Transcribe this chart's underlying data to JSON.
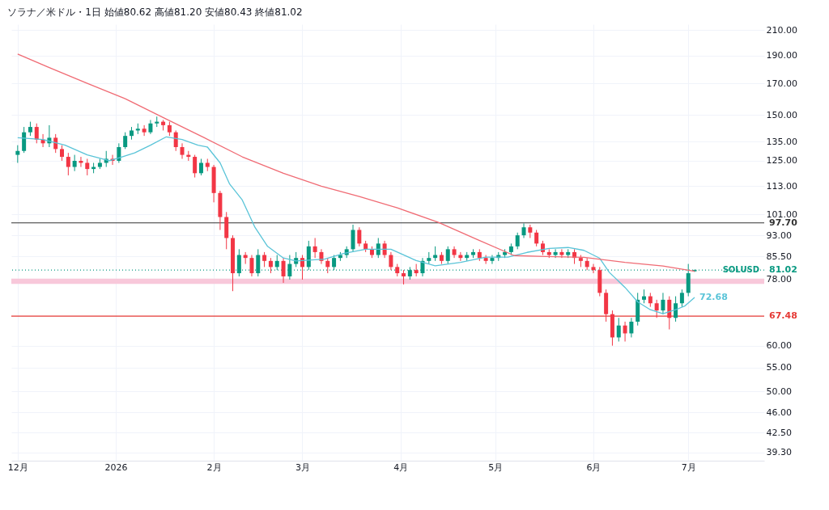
{
  "chart_data": {
    "type": "candlestick",
    "title": "ソラナ／米ドル・1日 始値80.62 高値81.20 安値80.43 終値81.02",
    "x": [
      "2025-12-01",
      "2025-12-03",
      "2025-12-05",
      "2025-12-07",
      "2025-12-09",
      "2025-12-11",
      "2025-12-13",
      "2025-12-15",
      "2025-12-17",
      "2025-12-19",
      "2025-12-21",
      "2025-12-23",
      "2025-12-25",
      "2025-12-27",
      "2025-12-29",
      "2025-12-31",
      "2026-01-02",
      "2026-01-04",
      "2026-01-06",
      "2026-01-08",
      "2026-01-10",
      "2026-01-12",
      "2026-01-14",
      "2026-01-16",
      "2026-01-18",
      "2026-01-20",
      "2026-01-22",
      "2026-01-24",
      "2026-01-26",
      "2026-01-28",
      "2026-01-30",
      "2026-02-01",
      "2026-02-03",
      "2026-02-05",
      "2026-02-07",
      "2026-02-09",
      "2026-02-11",
      "2026-02-13",
      "2026-02-15",
      "2026-02-17",
      "2026-02-19",
      "2026-02-21",
      "2026-02-23",
      "2026-02-25",
      "2026-02-27",
      "2026-03-01",
      "2026-03-03",
      "2026-03-05",
      "2026-03-07",
      "2026-03-09",
      "2026-03-11",
      "2026-03-13",
      "2026-03-15",
      "2026-03-17",
      "2026-03-19",
      "2026-03-21",
      "2026-03-23",
      "2026-03-25",
      "2026-03-27",
      "2026-03-29",
      "2026-03-31",
      "2026-04-02",
      "2026-04-04",
      "2026-04-06",
      "2026-04-08",
      "2026-04-10",
      "2026-04-12",
      "2026-04-14",
      "2026-04-16",
      "2026-04-18",
      "2026-04-20",
      "2026-04-22",
      "2026-04-24",
      "2026-04-26",
      "2026-04-28",
      "2026-04-30",
      "2026-05-02",
      "2026-05-04",
      "2026-05-06",
      "2026-05-08",
      "2026-05-10",
      "2026-05-12",
      "2026-05-14",
      "2026-05-16",
      "2026-05-18",
      "2026-05-20",
      "2026-05-22",
      "2026-05-24",
      "2026-05-26",
      "2026-05-28",
      "2026-05-30",
      "2026-06-01",
      "2026-06-03",
      "2026-06-05",
      "2026-06-07",
      "2026-06-09",
      "2026-06-11",
      "2026-06-13",
      "2026-06-15",
      "2026-06-17",
      "2026-06-19",
      "2026-06-21",
      "2026-06-23",
      "2026-06-25",
      "2026-06-27",
      "2026-06-29",
      "2026-07-01",
      "2026-07-03"
    ],
    "ohlc": [
      [
        128,
        133,
        124,
        130
      ],
      [
        130,
        143,
        129,
        140
      ],
      [
        140,
        146,
        138,
        143
      ],
      [
        143,
        145,
        134,
        136
      ],
      [
        136,
        139,
        132,
        134
      ],
      [
        134,
        144,
        132,
        137
      ],
      [
        137,
        139,
        129,
        131
      ],
      [
        131,
        133,
        125,
        127
      ],
      [
        127,
        129,
        118,
        122
      ],
      [
        122,
        128,
        120,
        125
      ],
      [
        125,
        127,
        122,
        124
      ],
      [
        124,
        126,
        118,
        121
      ],
      [
        121,
        124,
        119,
        122
      ],
      [
        122,
        126,
        121,
        124
      ],
      [
        124,
        130,
        122,
        126
      ],
      [
        126,
        128,
        123,
        125
      ],
      [
        125,
        134,
        124,
        132
      ],
      [
        132,
        140,
        131,
        138
      ],
      [
        138,
        143,
        136,
        141
      ],
      [
        141,
        145,
        139,
        142
      ],
      [
        142,
        144,
        138,
        140
      ],
      [
        140,
        147,
        139,
        145
      ],
      [
        145,
        149,
        143,
        146
      ],
      [
        146,
        147,
        141,
        144
      ],
      [
        144,
        146,
        138,
        140
      ],
      [
        140,
        141,
        130,
        132
      ],
      [
        132,
        134,
        126,
        128
      ],
      [
        128,
        130,
        125,
        127
      ],
      [
        127,
        128,
        117,
        119
      ],
      [
        119,
        126,
        118,
        124
      ],
      [
        124,
        126,
        120,
        122
      ],
      [
        122,
        123,
        106,
        110
      ],
      [
        110,
        111,
        95,
        100
      ],
      [
        100,
        102,
        88,
        92
      ],
      [
        92,
        93,
        74.5,
        80
      ],
      [
        80,
        88,
        79,
        86
      ],
      [
        86,
        87,
        83,
        85
      ],
      [
        85,
        86,
        79,
        80
      ],
      [
        80,
        88,
        79,
        86
      ],
      [
        86,
        87,
        82,
        84
      ],
      [
        84,
        85,
        80,
        82
      ],
      [
        82,
        86,
        81,
        84
      ],
      [
        84,
        85,
        77,
        79
      ],
      [
        79,
        86,
        78,
        83
      ],
      [
        83,
        87,
        82,
        85
      ],
      [
        85,
        86,
        78,
        82
      ],
      [
        82,
        91,
        81,
        89
      ],
      [
        89,
        92,
        85,
        87
      ],
      [
        87,
        88,
        83,
        84
      ],
      [
        84,
        85,
        80,
        82
      ],
      [
        82,
        86,
        81,
        85
      ],
      [
        85,
        87,
        84,
        86
      ],
      [
        86,
        89,
        85,
        88
      ],
      [
        88,
        97,
        87,
        95
      ],
      [
        95,
        96,
        89,
        90
      ],
      [
        90,
        91,
        87,
        88
      ],
      [
        88,
        89,
        85,
        86
      ],
      [
        86,
        92,
        85,
        90
      ],
      [
        90,
        91,
        85,
        86
      ],
      [
        86,
        87,
        81,
        82
      ],
      [
        82,
        83,
        79,
        80
      ],
      [
        80,
        81,
        76.5,
        79
      ],
      [
        79,
        82,
        78,
        81
      ],
      [
        81,
        83,
        79,
        80
      ],
      [
        80,
        85,
        79,
        84
      ],
      [
        84,
        87,
        83,
        85
      ],
      [
        85,
        89,
        84,
        86
      ],
      [
        86,
        87,
        83,
        84
      ],
      [
        84,
        89,
        83,
        88
      ],
      [
        88,
        89,
        85,
        86
      ],
      [
        86,
        87,
        84,
        85
      ],
      [
        85,
        87,
        84,
        86
      ],
      [
        86,
        88,
        85,
        87
      ],
      [
        87,
        88,
        84,
        85
      ],
      [
        85,
        86,
        83,
        84
      ],
      [
        84,
        86,
        83,
        85
      ],
      [
        85,
        87,
        84,
        86
      ],
      [
        86,
        88,
        85,
        87
      ],
      [
        87,
        90,
        86,
        89
      ],
      [
        89,
        94,
        88,
        93
      ],
      [
        93,
        97.5,
        92,
        96
      ],
      [
        96,
        97,
        92,
        94
      ],
      [
        94,
        95,
        89,
        90
      ],
      [
        90,
        91,
        86,
        87
      ],
      [
        87,
        88,
        85,
        86
      ],
      [
        86,
        88,
        85,
        87
      ],
      [
        87,
        88,
        85,
        86
      ],
      [
        86,
        88,
        85,
        87
      ],
      [
        87,
        88,
        83,
        85
      ],
      [
        85,
        86,
        82,
        84
      ],
      [
        84,
        85,
        81,
        82
      ],
      [
        82,
        83,
        80,
        81
      ],
      [
        81,
        82,
        73,
        74
      ],
      [
        74,
        75,
        66,
        68
      ],
      [
        68,
        69,
        60,
        62
      ],
      [
        62,
        67,
        61,
        65
      ],
      [
        65,
        66,
        61,
        63
      ],
      [
        63,
        67,
        62,
        66
      ],
      [
        66,
        74,
        65,
        72
      ],
      [
        72,
        75,
        71,
        73
      ],
      [
        73,
        74,
        70,
        71
      ],
      [
        71,
        72,
        67,
        69
      ],
      [
        69,
        74,
        68,
        72
      ],
      [
        72,
        73,
        64,
        67
      ],
      [
        67,
        73,
        66,
        71
      ],
      [
        71,
        75,
        70,
        74
      ],
      [
        74,
        83,
        73,
        80
      ],
      [
        80.62,
        81.2,
        80.43,
        81.02
      ]
    ],
    "colors": [
      "#089981",
      "#089981",
      "#089981",
      "#f23645",
      "#f23645",
      "#089981",
      "#f23645",
      "#f23645",
      "#f23645",
      "#089981",
      "#f23645",
      "#f23645",
      "#089981",
      "#089981",
      "#089981",
      "#f23645",
      "#089981",
      "#089981",
      "#089981",
      "#089981",
      "#f23645",
      "#089981",
      "#089981",
      "#f23645",
      "#f23645",
      "#f23645",
      "#f23645",
      "#f23645",
      "#f23645",
      "#089981",
      "#f23645",
      "#f23645",
      "#f23645",
      "#f23645",
      "#f23645",
      "#089981",
      "#f23645",
      "#f23645",
      "#089981",
      "#f23645",
      "#f23645",
      "#089981",
      "#f23645",
      "#089981",
      "#089981",
      "#f23645",
      "#089981",
      "#f23645",
      "#f23645",
      "#f23645",
      "#089981",
      "#089981",
      "#089981",
      "#089981",
      "#f23645",
      "#f23645",
      "#f23645",
      "#089981",
      "#f23645",
      "#f23645",
      "#f23645",
      "#f23645",
      "#089981",
      "#f23645",
      "#089981",
      "#089981",
      "#089981",
      "#f23645",
      "#089981",
      "#f23645",
      "#f23645",
      "#089981",
      "#089981",
      "#f23645",
      "#f23645",
      "#089981",
      "#089981",
      "#089981",
      "#089981",
      "#089981",
      "#089981",
      "#f23645",
      "#f23645",
      "#f23645",
      "#f23645",
      "#089981",
      "#f23645",
      "#089981",
      "#f23645",
      "#f23645",
      "#f23645",
      "#f23645",
      "#f23645",
      "#f23645",
      "#f23645",
      "#089981",
      "#f23645",
      "#089981",
      "#089981",
      "#089981",
      "#f23645",
      "#f23645",
      "#089981",
      "#f23645",
      "#089981",
      "#089981",
      "#089981",
      "#089981"
    ],
    "series": [
      {
        "type": "line",
        "color": "#5ac4d8",
        "x": [
          "2025-12-01",
          "2025-12-09",
          "2025-12-16",
          "2025-12-23",
          "2025-12-30",
          "2026-01-03",
          "2026-01-07",
          "2026-01-12",
          "2026-01-17",
          "2026-01-22",
          "2026-01-27",
          "2026-01-30",
          "2026-02-03",
          "2026-02-06",
          "2026-02-10",
          "2026-02-14",
          "2026-02-18",
          "2026-02-23",
          "2026-02-27",
          "2026-03-08",
          "2026-03-14",
          "2026-03-21",
          "2026-03-29",
          "2026-04-06",
          "2026-04-12",
          "2026-04-20",
          "2026-04-28",
          "2026-05-05",
          "2026-05-11",
          "2026-05-18",
          "2026-05-24",
          "2026-05-29",
          "2026-06-03",
          "2026-06-06",
          "2026-06-11",
          "2026-06-15",
          "2026-06-19",
          "2026-06-23",
          "2026-06-27",
          "2026-06-30",
          "2026-07-03"
        ],
        "values": [
          137,
          136,
          133,
          128,
          125,
          127,
          129,
          133,
          137.5,
          136,
          133,
          132,
          124,
          114,
          107,
          96,
          89,
          85,
          84,
          84.6,
          86.5,
          88,
          88,
          84.1,
          82.4,
          83.5,
          85.3,
          85.3,
          86.9,
          88.3,
          88.6,
          87.6,
          84.9,
          80.3,
          75.6,
          71.4,
          69.2,
          68.1,
          69.2,
          70.3,
          72.68
        ],
        "value_labels": [
          null,
          null,
          null,
          null,
          null,
          null,
          null,
          null,
          null,
          null,
          null,
          null,
          null,
          null,
          null,
          null,
          null,
          null,
          null,
          null,
          null,
          null,
          null,
          null,
          null,
          null,
          null,
          null,
          null,
          null,
          null,
          null,
          null,
          null,
          null,
          null,
          null,
          null,
          null,
          null,
          "72.68"
        ]
      },
      {
        "type": "line",
        "color": "#f06b74",
        "x": [
          "2025-12-01",
          "2025-12-11",
          "2025-12-23",
          "2026-01-04",
          "2026-01-17",
          "2026-01-29",
          "2026-02-10",
          "2026-02-23",
          "2026-03-07",
          "2026-03-19",
          "2026-03-31",
          "2026-04-13",
          "2026-04-25",
          "2026-05-07",
          "2026-05-17",
          "2026-05-29",
          "2026-06-11",
          "2026-06-23",
          "2026-07-03"
        ],
        "values": [
          191,
          181,
          170,
          160,
          147.5,
          137,
          127,
          119,
          113,
          108.5,
          103.7,
          97.9,
          91.6,
          85.8,
          85.5,
          85.2,
          83.5,
          82.3,
          80.6
        ]
      }
    ],
    "ref_lines": [
      {
        "axis": "y",
        "value": 97.7,
        "label": "97.70",
        "color": "#333333",
        "line_style": "solid"
      },
      {
        "axis": "y",
        "value": 81.02,
        "label": "81.02",
        "color": "#089981",
        "line_style": "dotted"
      },
      {
        "axis": "y",
        "value": 67.48,
        "label": "67.48",
        "color": "#e53935",
        "line_style": "solid"
      }
    ],
    "bands": [
      {
        "axis": "y",
        "from": 76.7,
        "to": 78.3,
        "color": "#f8c8da"
      }
    ],
    "annotations": [
      {
        "text": "SOLUSD",
        "y": 81.02
      }
    ],
    "log": true,
    "grid": true,
    "ylim": [
      38,
      215
    ],
    "yticks": [
      {
        "value": 210,
        "label": "210.00"
      },
      {
        "value": 190,
        "label": "190.00"
      },
      {
        "value": 170,
        "label": "170.00"
      },
      {
        "value": 150,
        "label": "150.00"
      },
      {
        "value": 135,
        "label": "135.00"
      },
      {
        "value": 125,
        "label": "125.00"
      },
      {
        "value": 113,
        "label": "113.00"
      },
      {
        "value": 101,
        "label": "101.00"
      },
      {
        "value": 93,
        "label": "93.00"
      },
      {
        "value": 85.5,
        "label": "85.50"
      },
      {
        "value": 78,
        "label": "78.00"
      },
      {
        "value": 60,
        "label": "60.00"
      },
      {
        "value": 55,
        "label": "55.00"
      },
      {
        "value": 50,
        "label": "50.00"
      },
      {
        "value": 46,
        "label": "46.00"
      },
      {
        "value": 42.5,
        "label": "42.50"
      },
      {
        "value": 39.3,
        "label": "39.30"
      }
    ],
    "xlim": [
      "2025-11-29",
      "2026-07-25"
    ],
    "xticks": [
      {
        "value": "2025-12-01",
        "label": "12月"
      },
      {
        "value": "2026-01-01",
        "label": "2026"
      },
      {
        "value": "2026-02-01",
        "label": "2月"
      },
      {
        "value": "2026-03-01",
        "label": "3月"
      },
      {
        "value": "2026-04-01",
        "label": "4月"
      },
      {
        "value": "2026-05-01",
        "label": "5月"
      },
      {
        "value": "2026-06-01",
        "label": "6月"
      },
      {
        "value": "2026-07-01",
        "label": "7月"
      }
    ]
  }
}
